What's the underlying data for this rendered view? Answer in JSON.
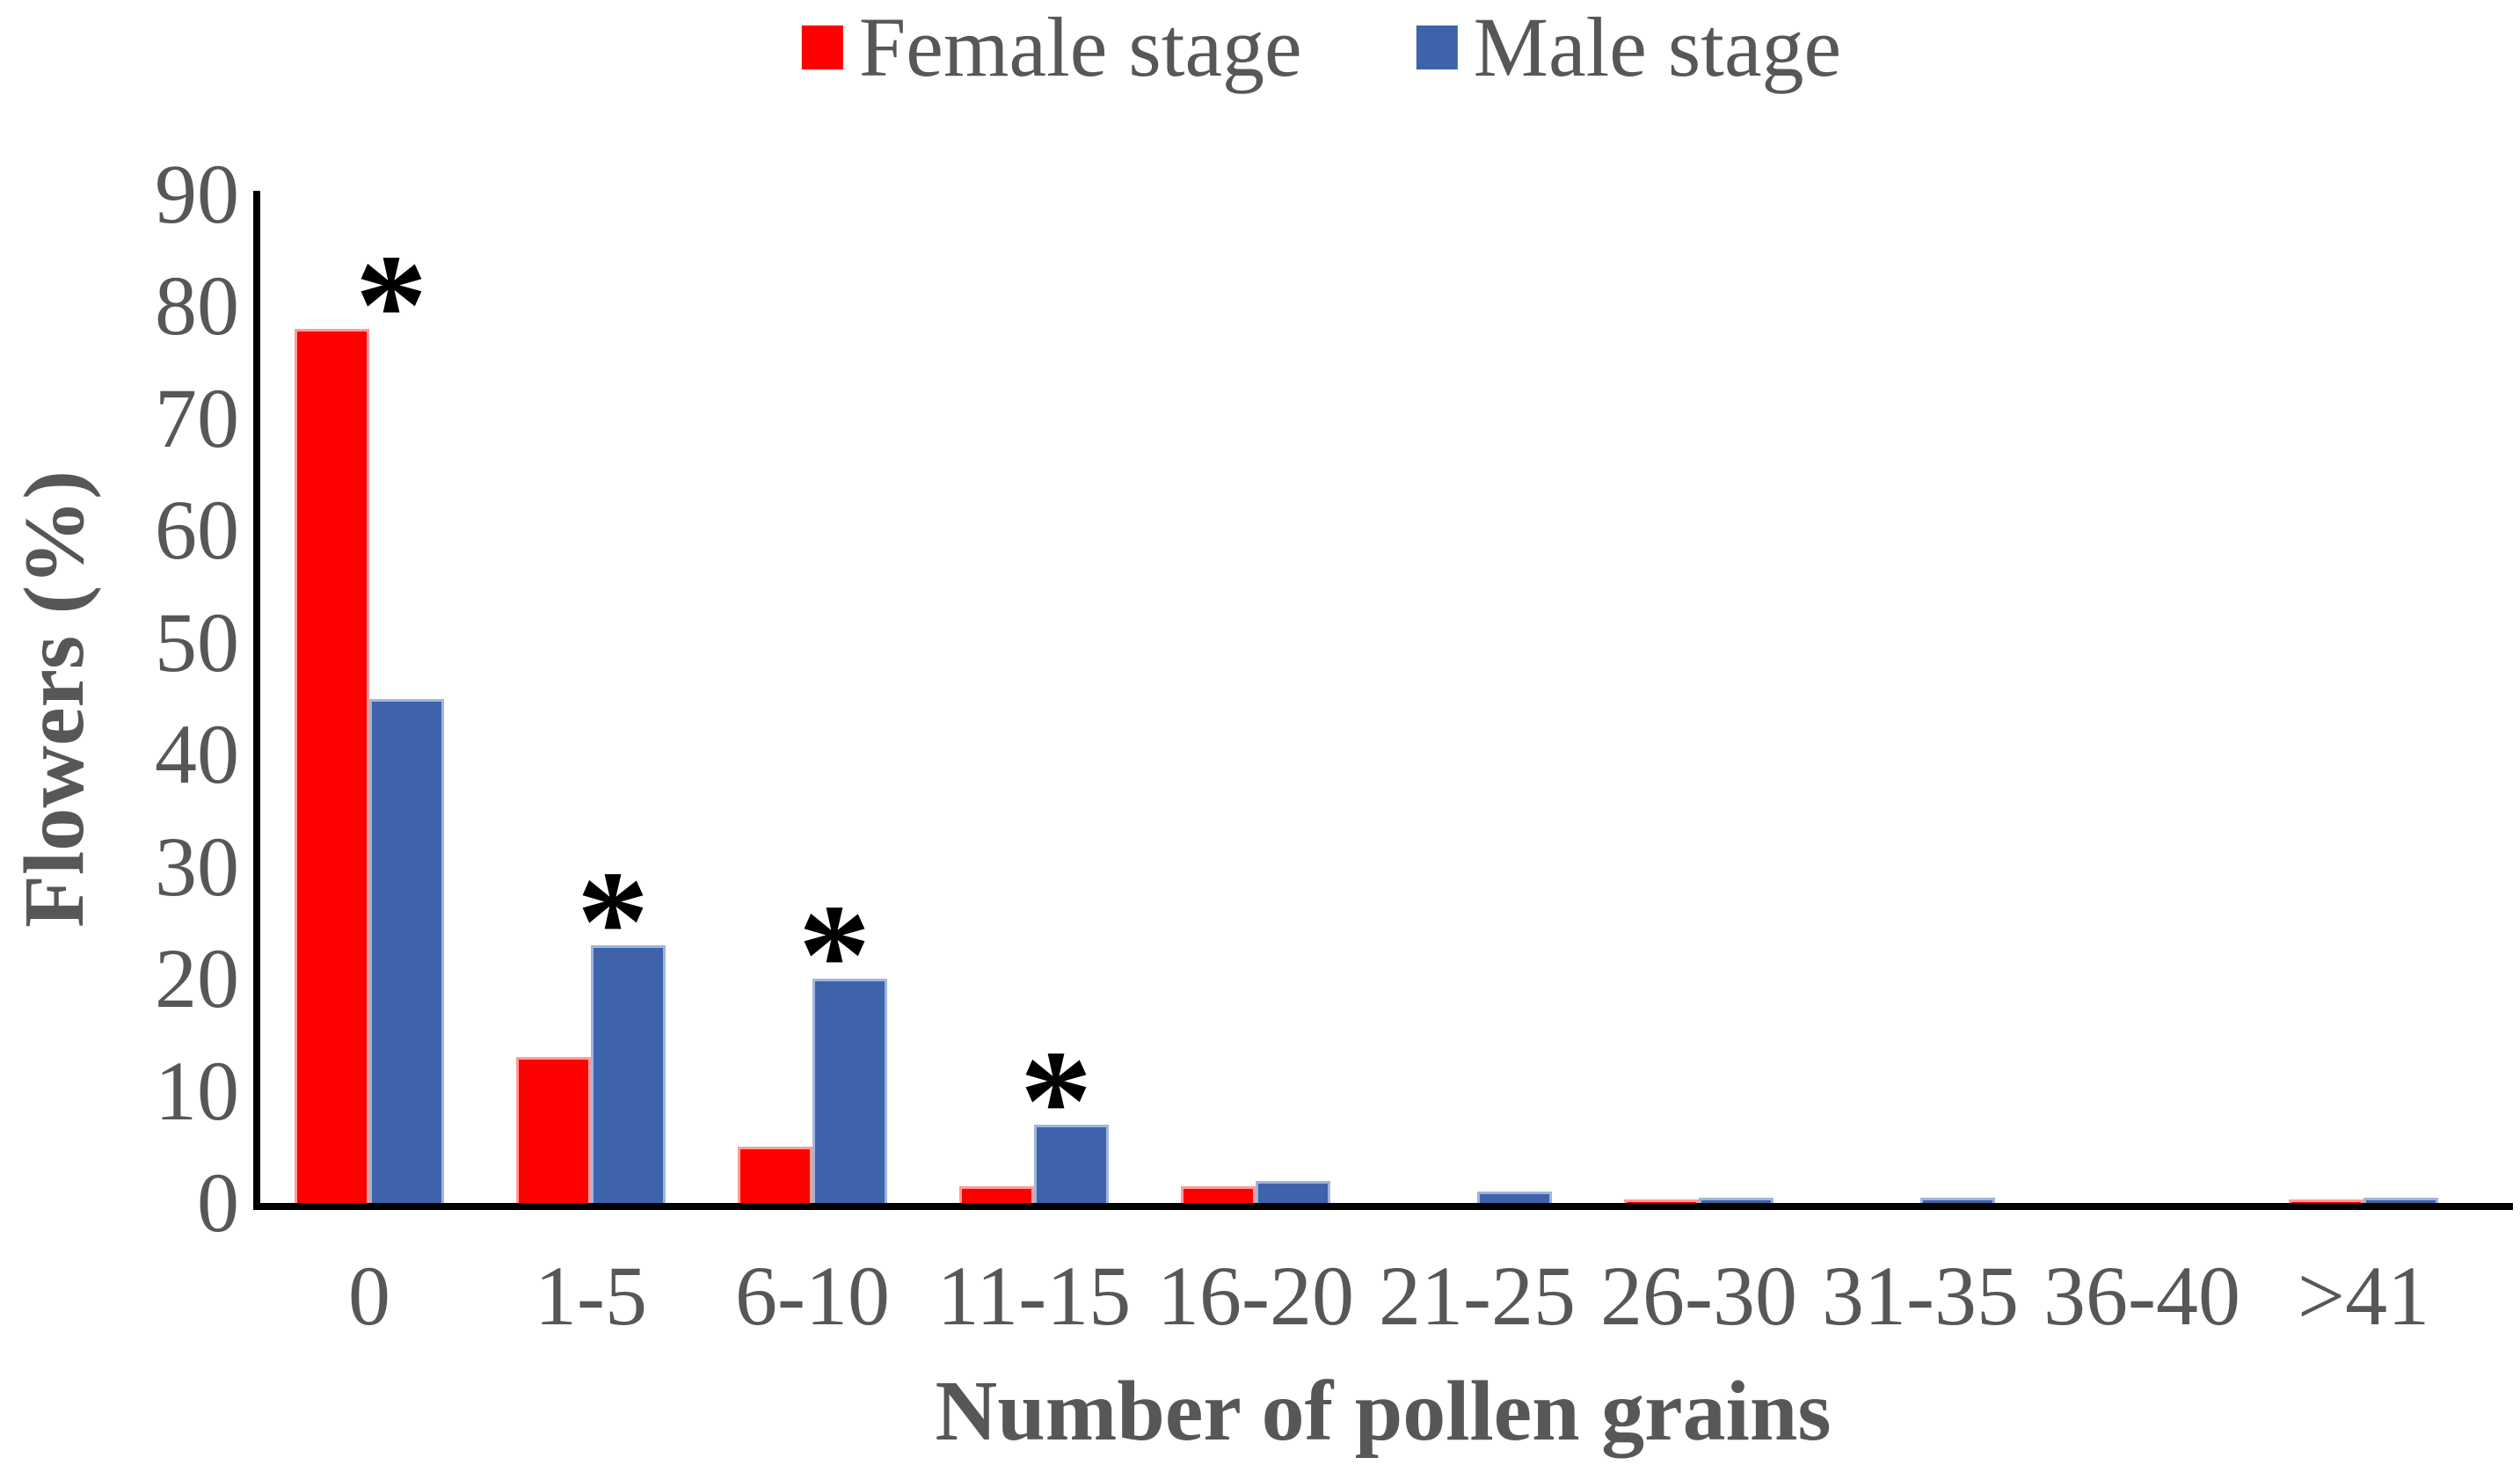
{
  "chart_data": {
    "type": "bar",
    "title": "",
    "categories": [
      "0",
      "1-5",
      "6-10",
      "11-15",
      "16-20",
      "21-25",
      "26-30",
      "31-35",
      "36-40",
      ">41"
    ],
    "series": [
      {
        "name": "Female stage",
        "color": "#FF0000",
        "edge_color": "#FF9C9C",
        "values": [
          78,
          13,
          5,
          1.5,
          1.5,
          0,
          0.3,
          0,
          0,
          0.3
        ]
      },
      {
        "name": "Male stage",
        "color": "#3E63AA",
        "edge_color": "#9FB5DB",
        "values": [
          45,
          23,
          20,
          7,
          2,
          1,
          0.5,
          0.5,
          0,
          0.5
        ]
      }
    ],
    "significance_marks": [
      "0",
      "1-5",
      "6-10",
      "11-15"
    ],
    "significance_symbol": "*",
    "xlabel": "Number of pollen grains",
    "ylabel": "Flowers (%)",
    "ylim": [
      0,
      90
    ],
    "yticks": [
      0,
      10,
      20,
      30,
      40,
      50,
      60,
      70,
      80,
      90
    ],
    "legend_position": "top",
    "grid": false,
    "text_color": "#575757",
    "axis_color": "#000000"
  }
}
